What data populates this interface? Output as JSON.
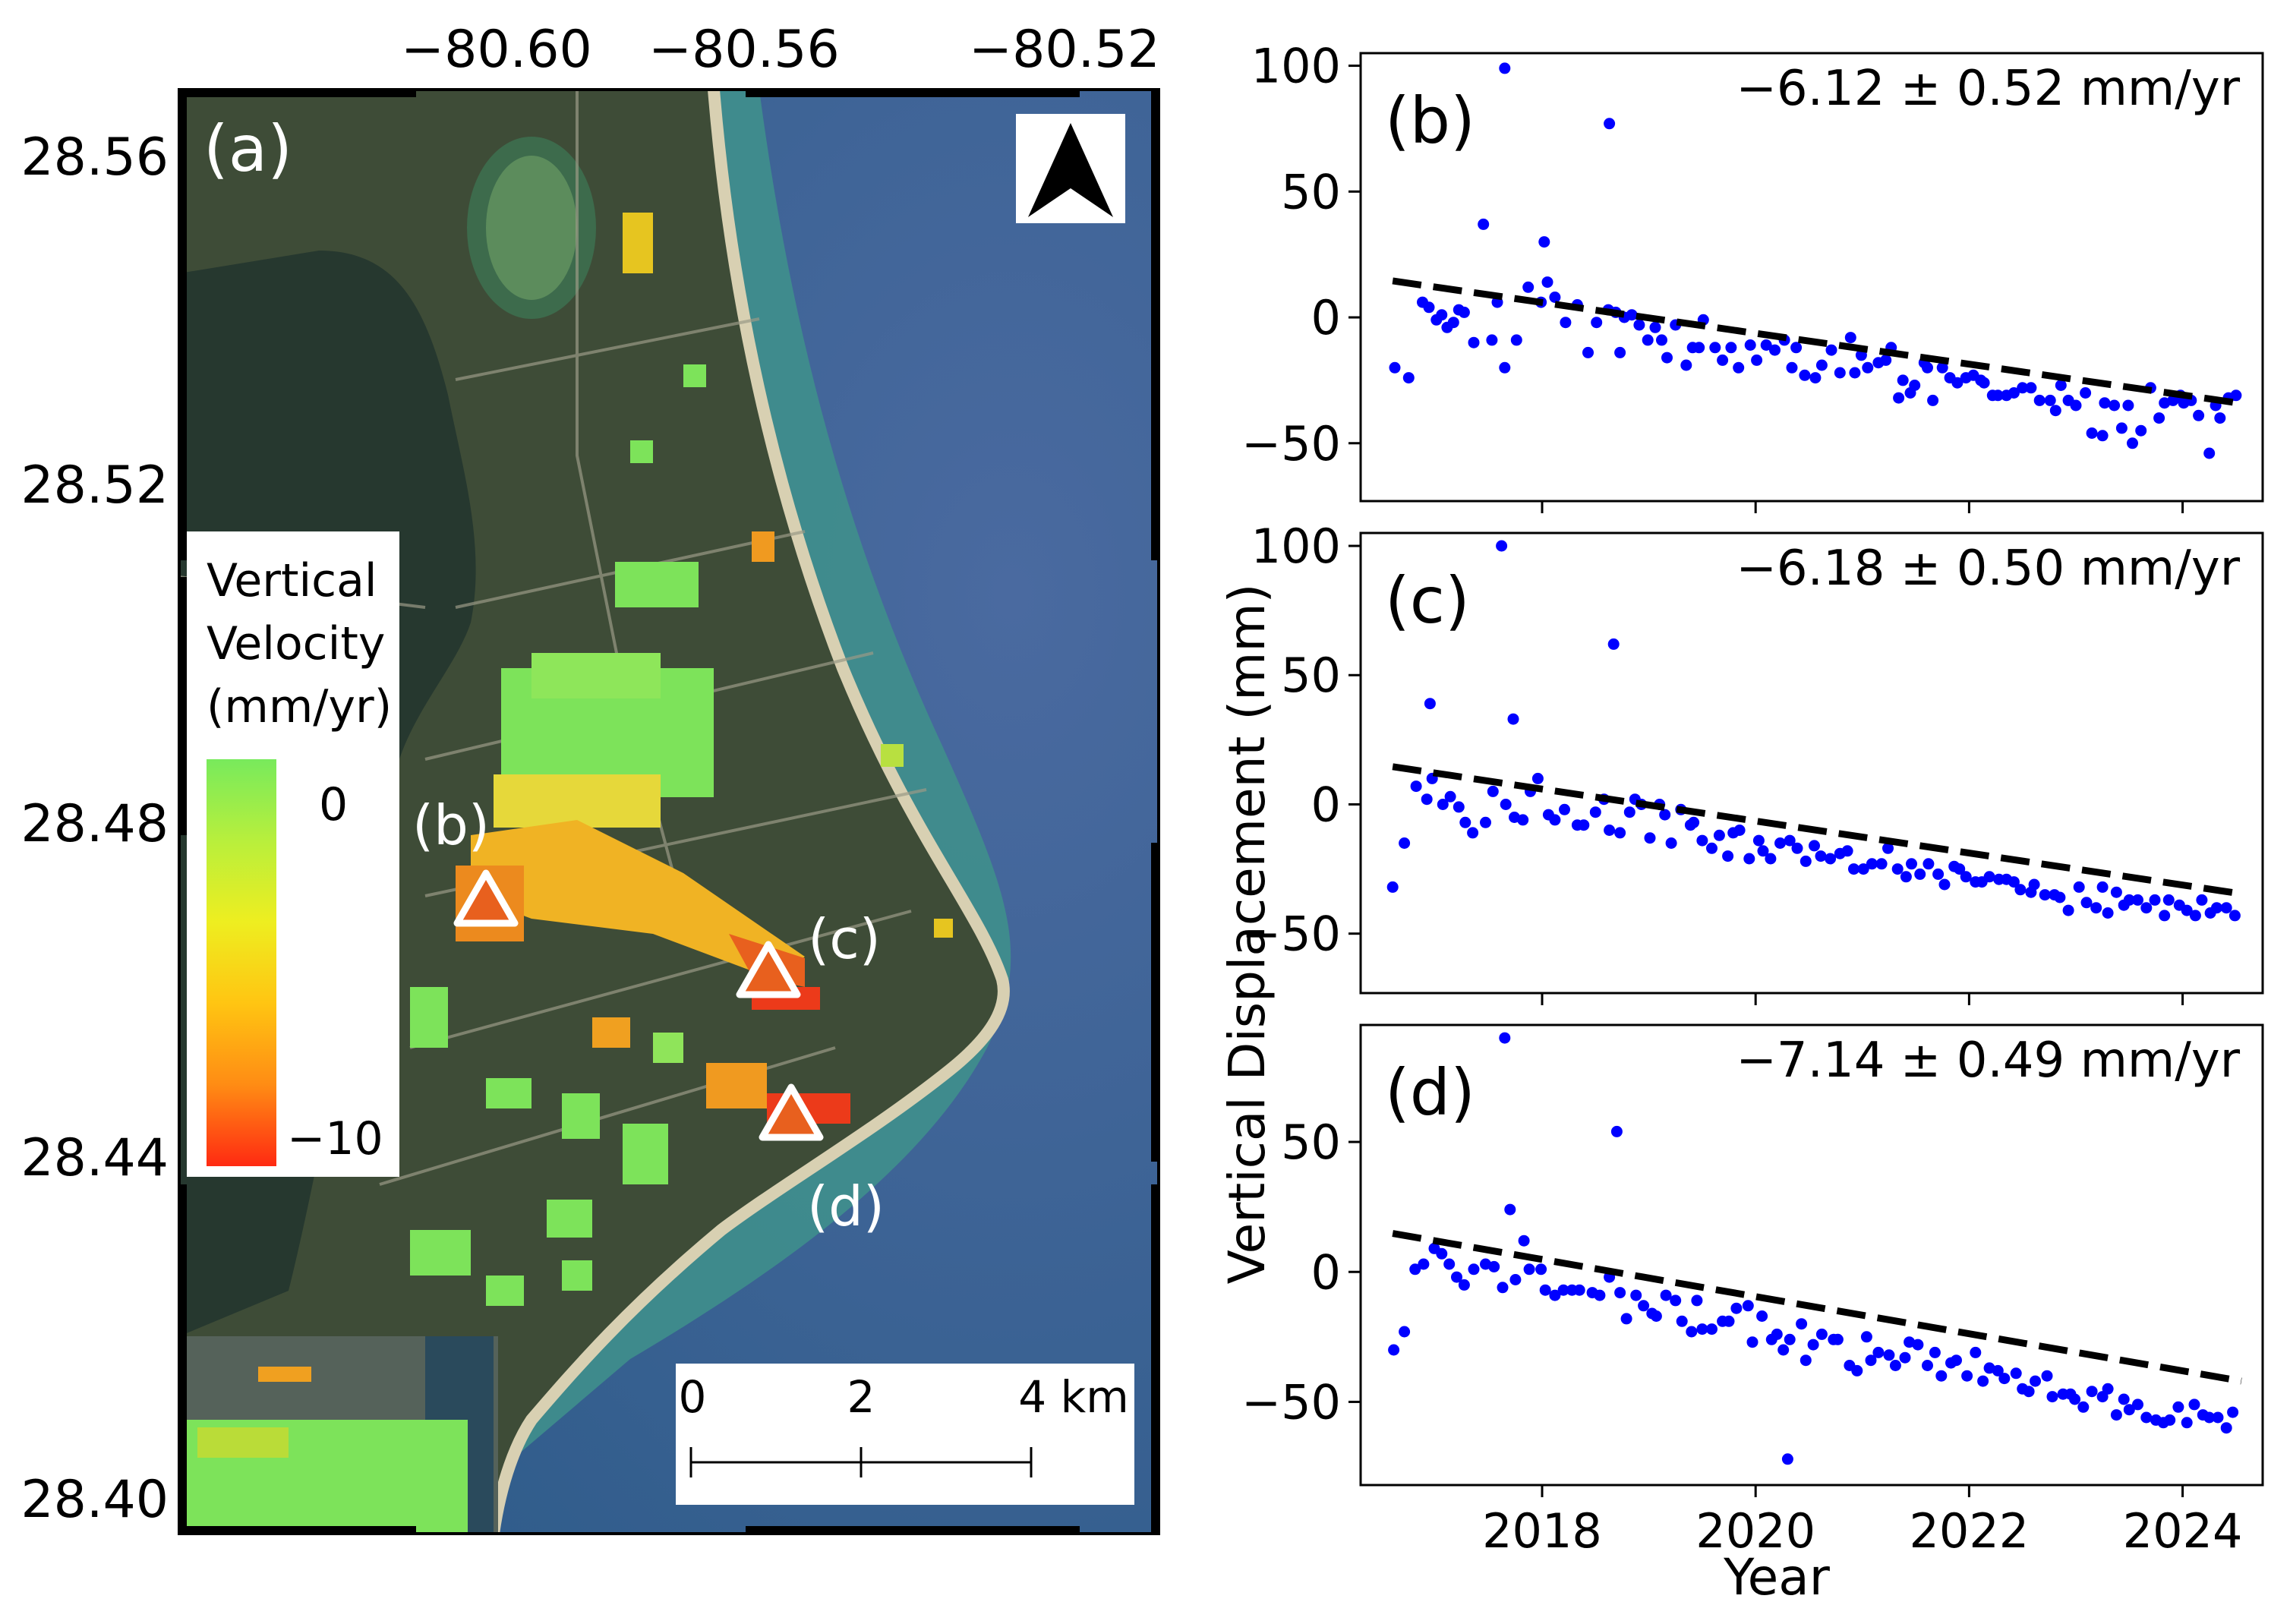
{
  "map": {
    "panel_label": "(a)",
    "lon_ticks": [
      "−80.60",
      "−80.56",
      "−80.52"
    ],
    "lat_ticks": [
      "28.56",
      "28.52",
      "28.48",
      "28.44",
      "28.40"
    ],
    "colorbar": {
      "title_lines": [
        "Vertical",
        "Velocity",
        "(mm/yr)"
      ],
      "max_label": "0",
      "min_label": "−10",
      "colors": [
        "#ff2a12",
        "#ff8c14",
        "#ffc512",
        "#eeee20",
        "#b8ef3c",
        "#78ea5c"
      ]
    },
    "points": [
      {
        "label": "(b)"
      },
      {
        "label": "(c)"
      },
      {
        "label": "(d)"
      }
    ],
    "scale_bar": {
      "labels": [
        "0",
        "2",
        "4 km"
      ]
    },
    "colors": {
      "ocean": "#2f5f8c",
      "ocean_deep": "#4a6aa0",
      "shallow": "#3f8a8a",
      "land": "#3d4d38",
      "lagoon": "#23362f",
      "beach": "#d9d2b6",
      "velocity_green": "#7de35a",
      "velocity_orange": "#f0a020",
      "velocity_red": "#e8401c"
    }
  },
  "chart_data": [
    {
      "type": "scatter",
      "panel": "(b)",
      "rate_label": "−6.12 ± 0.52 mm/yr",
      "slope_mm_per_yr": -6.12,
      "trend": {
        "x": [
          2016.6,
          2024.55
        ],
        "y": [
          14.5,
          -34.2
        ]
      },
      "xlim": [
        2016.3,
        2024.75
      ],
      "ylim": [
        -73,
        105
      ],
      "yticks": [
        -50,
        0,
        50,
        100
      ],
      "x": [
        2016.62,
        2016.75,
        2016.88,
        2016.94,
        2017.01,
        2017.06,
        2017.11,
        2017.17,
        2017.22,
        2017.27,
        2017.36,
        2017.53,
        2017.58,
        2017.65,
        2017.76,
        2017.87,
        2017.99,
        2018.05,
        2018.12,
        2018.22,
        2018.33,
        2018.43,
        2018.51,
        2018.62,
        2018.69,
        2018.73,
        2018.77,
        2018.84,
        2018.91,
        2018.99,
        2019.06,
        2019.12,
        2019.17,
        2019.25,
        2019.35,
        2019.41,
        2019.47,
        2019.51,
        2019.62,
        2019.69,
        2019.77,
        2019.84,
        2019.95,
        2020.01,
        2020.1,
        2020.18,
        2020.27,
        2020.34,
        2020.38,
        2020.46,
        2020.56,
        2020.62,
        2020.71,
        2020.79,
        2020.89,
        2020.93,
        2020.99,
        2021.05,
        2021.15,
        2021.22,
        2021.27,
        2021.34,
        2021.38,
        2021.45,
        2021.49,
        2021.58,
        2021.61,
        2021.66,
        2021.75,
        2021.82,
        2021.89,
        2021.97,
        2022.04,
        2022.11,
        2022.14,
        2022.22,
        2022.27,
        2022.35,
        2022.42,
        2022.5,
        2022.58,
        2022.66,
        2022.76,
        2022.81,
        2022.86,
        2022.93,
        2023.0,
        2023.09,
        2023.15,
        2023.25,
        2023.27,
        2023.36,
        2023.43,
        2023.49,
        2023.53,
        2023.61,
        2023.7,
        2023.78,
        2023.83,
        2023.91,
        2023.98,
        2024.01,
        2024.08,
        2024.15,
        2024.25,
        2024.31,
        2024.35,
        2024.43,
        2024.5,
        2017.65,
        2018.63,
        2018.02,
        2017.45
      ],
      "y": [
        -20,
        -24,
        6,
        4,
        -1,
        1,
        -4,
        -2,
        3,
        2,
        -10,
        -9,
        6,
        -20,
        -9,
        12,
        6,
        14,
        8,
        -2,
        5,
        -14,
        -2,
        3,
        2,
        -14,
        0,
        1,
        -3,
        -9,
        -4,
        -9,
        -16,
        -3,
        -19,
        -12,
        -12,
        -1,
        -12,
        -17,
        -12,
        -20,
        -11,
        -17,
        -11,
        -13,
        -9,
        -20,
        -12,
        -23,
        -24,
        -19,
        -13,
        -22,
        -8,
        -22,
        -15,
        -20,
        -18,
        -17,
        -12,
        -32,
        -25,
        -30,
        -27,
        -18,
        -20,
        -33,
        -20,
        -24,
        -26,
        -24,
        -23,
        -25,
        -26,
        -31,
        -31,
        -31,
        -30,
        -28,
        -28,
        -33,
        -33,
        -37,
        -27,
        -33,
        -35,
        -30,
        -46,
        -47,
        -34,
        -35,
        -44,
        -35,
        -50,
        -45,
        -28,
        -40,
        -34,
        -33,
        -31,
        -34,
        -33,
        -39,
        -54,
        -35,
        -40,
        -32,
        -31,
        99,
        77,
        30,
        37
      ]
    },
    {
      "type": "scatter",
      "panel": "(c)",
      "rate_label": "−6.18 ± 0.50 mm/yr",
      "slope_mm_per_yr": -6.18,
      "trend": {
        "x": [
          2016.6,
          2024.55
        ],
        "y": [
          14.6,
          -34.6
        ]
      },
      "xlim": [
        2016.3,
        2024.75
      ],
      "ylim": [
        -73,
        105
      ],
      "yticks": [
        -50,
        0,
        50,
        100
      ],
      "x": [
        2016.6,
        2016.71,
        2016.82,
        2016.92,
        2016.97,
        2017.07,
        2017.14,
        2017.22,
        2017.28,
        2017.35,
        2017.47,
        2017.54,
        2017.66,
        2017.74,
        2017.82,
        2017.89,
        2017.96,
        2018.06,
        2018.12,
        2018.21,
        2018.33,
        2018.39,
        2018.5,
        2018.58,
        2018.63,
        2018.73,
        2018.82,
        2018.87,
        2018.93,
        2019.01,
        2019.1,
        2019.15,
        2019.21,
        2019.3,
        2019.39,
        2019.42,
        2019.5,
        2019.59,
        2019.66,
        2019.74,
        2019.79,
        2019.85,
        2019.94,
        2020.03,
        2020.07,
        2020.14,
        2020.23,
        2020.32,
        2020.39,
        2020.47,
        2020.55,
        2020.61,
        2020.7,
        2020.79,
        2020.86,
        2020.92,
        2021.01,
        2021.09,
        2021.18,
        2021.24,
        2021.33,
        2021.41,
        2021.46,
        2021.54,
        2021.62,
        2021.71,
        2021.77,
        2021.86,
        2021.91,
        2021.97,
        2022.06,
        2022.12,
        2022.19,
        2022.28,
        2022.35,
        2022.42,
        2022.48,
        2022.58,
        2022.61,
        2022.71,
        2022.8,
        2022.85,
        2022.93,
        2023.03,
        2023.1,
        2023.19,
        2023.25,
        2023.3,
        2023.38,
        2023.45,
        2023.5,
        2023.58,
        2023.66,
        2023.74,
        2023.83,
        2023.87,
        2023.97,
        2024.04,
        2024.12,
        2024.18,
        2024.26,
        2024.32,
        2024.41,
        2024.49,
        2017.62,
        2018.67,
        2017.73,
        2016.95
      ],
      "y": [
        -32,
        -15,
        7,
        2,
        10,
        0,
        3,
        -1,
        -7,
        -11,
        -7,
        5,
        0,
        -5,
        -6,
        5,
        10,
        -4,
        -6,
        -2,
        -8,
        -8,
        -3,
        2,
        -10,
        -11,
        -3,
        2,
        0,
        -13,
        0,
        -4,
        -15,
        -2,
        -8,
        -7,
        -14,
        -17,
        -12,
        -20,
        -11,
        -10,
        -21,
        -14,
        -18,
        -21,
        -15,
        -14,
        -17,
        -22,
        -16,
        -20,
        -21,
        -19,
        -18,
        -25,
        -25,
        -23,
        -23,
        -17,
        -25,
        -28,
        -23,
        -27,
        -23,
        -27,
        -31,
        -24,
        -25,
        -28,
        -30,
        -30,
        -28,
        -29,
        -29,
        -30,
        -33,
        -34,
        -31,
        -35,
        -35,
        -36,
        -41,
        -32,
        -38,
        -40,
        -32,
        -42,
        -34,
        -39,
        -37,
        -37,
        -40,
        -37,
        -43,
        -37,
        -39,
        -41,
        -43,
        -37,
        -42,
        -40,
        -40,
        -43,
        100,
        62,
        33,
        39
      ]
    },
    {
      "type": "scatter",
      "panel": "(d)",
      "rate_label": "−7.14 ± 0.49 mm/yr",
      "slope_mm_per_yr": -7.14,
      "trend": {
        "x": [
          2016.6,
          2024.55
        ],
        "y": [
          14.8,
          -42.0
        ]
      },
      "xlim": [
        2016.3,
        2024.75
      ],
      "ylim": [
        -82,
        95
      ],
      "yticks": [
        -50,
        0,
        50
      ],
      "x": [
        2016.61,
        2016.71,
        2016.81,
        2016.89,
        2016.99,
        2017.06,
        2017.13,
        2017.2,
        2017.27,
        2017.36,
        2017.47,
        2017.55,
        2017.63,
        2017.75,
        2017.83,
        2017.88,
        2017.99,
        2018.03,
        2018.12,
        2018.2,
        2018.28,
        2018.35,
        2018.47,
        2018.54,
        2018.63,
        2018.73,
        2018.79,
        2018.88,
        2018.95,
        2019.03,
        2019.07,
        2019.16,
        2019.25,
        2019.31,
        2019.4,
        2019.45,
        2019.5,
        2019.59,
        2019.69,
        2019.75,
        2019.82,
        2019.93,
        2019.97,
        2020.06,
        2020.15,
        2020.2,
        2020.26,
        2020.32,
        2020.43,
        2020.47,
        2020.54,
        2020.62,
        2020.73,
        2020.77,
        2020.88,
        2020.95,
        2021.04,
        2021.08,
        2021.15,
        2021.25,
        2021.31,
        2021.4,
        2021.44,
        2021.52,
        2021.61,
        2021.68,
        2021.74,
        2021.83,
        2021.88,
        2021.98,
        2022.06,
        2022.13,
        2022.19,
        2022.27,
        2022.33,
        2022.44,
        2022.5,
        2022.56,
        2022.62,
        2022.73,
        2022.78,
        2022.88,
        2022.95,
        2022.99,
        2023.07,
        2023.15,
        2023.25,
        2023.3,
        2023.38,
        2023.45,
        2023.5,
        2023.58,
        2023.66,
        2023.75,
        2023.82,
        2023.88,
        2023.96,
        2024.04,
        2024.11,
        2024.19,
        2024.25,
        2024.33,
        2024.41,
        2024.47,
        2017.65,
        2018.7,
        2017.7,
        2020.3
      ],
      "y": [
        -30,
        -23,
        1,
        3,
        9,
        7,
        3,
        -2,
        -5,
        1,
        3,
        2,
        -6,
        -3,
        12,
        1,
        1,
        -7,
        -9,
        -7,
        -7,
        -7,
        -8,
        -9,
        -2,
        -8,
        -18,
        -9,
        -13,
        -16,
        -17,
        -9,
        -11,
        -19,
        -23,
        -11,
        -22,
        -22,
        -19,
        -19,
        -14,
        -13,
        -27,
        -17,
        -26,
        -24,
        -30,
        -26,
        -20,
        -34,
        -28,
        -24,
        -26,
        -26,
        -36,
        -38,
        -25,
        -34,
        -31,
        -32,
        -36,
        -33,
        -27,
        -28,
        -36,
        -31,
        -40,
        -35,
        -34,
        -40,
        -31,
        -42,
        -37,
        -38,
        -41,
        -39,
        -45,
        -46,
        -42,
        -40,
        -48,
        -47,
        -47,
        -49,
        -52,
        -46,
        -48,
        -45,
        -55,
        -49,
        -53,
        -51,
        -56,
        -57,
        -58,
        -57,
        -52,
        -58,
        -51,
        -55,
        -56,
        -56,
        -60,
        -54,
        90,
        54,
        24,
        -72
      ]
    }
  ],
  "shared_axes": {
    "xticks": [
      2018,
      2020,
      2022,
      2024
    ],
    "xlabel": "Year",
    "ylabel": "Vertical Displacement (mm)",
    "colors": {
      "points": "#0000ff",
      "trend": "#000000",
      "frame": "#000000"
    }
  }
}
